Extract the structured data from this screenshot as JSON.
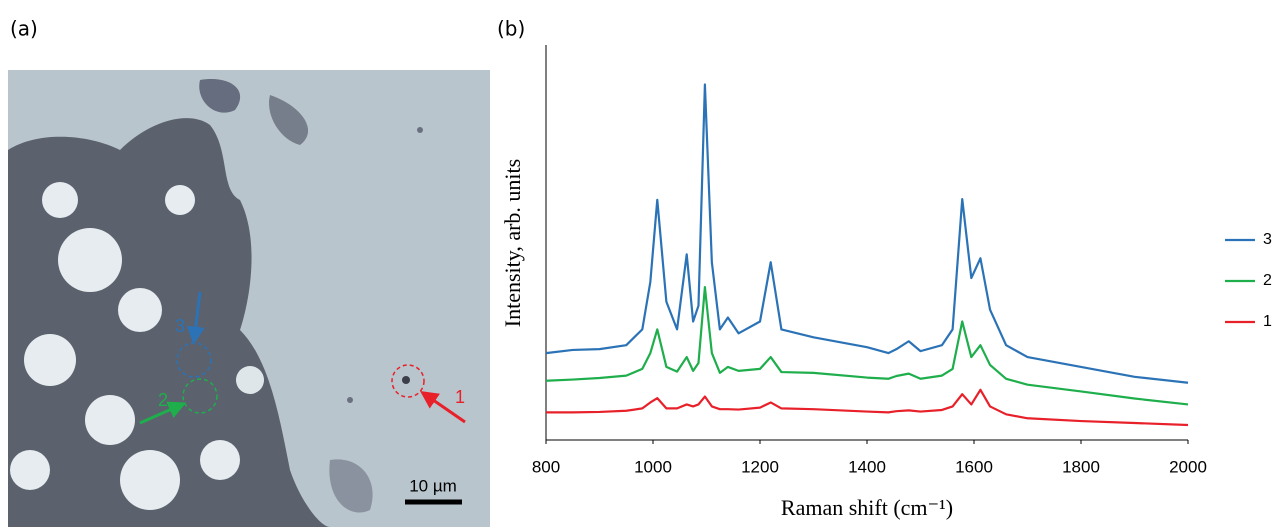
{
  "panel_labels": [
    "(a)",
    "(b)"
  ],
  "micrograph": {
    "markers": [
      "1",
      "2",
      "3"
    ],
    "scale_bar": "10 µm"
  },
  "chart_data": {
    "type": "line",
    "xlabel": "Raman shift (cm⁻¹)",
    "ylabel": "Intensity, arb. units",
    "x": [
      800,
      850,
      900,
      950,
      980,
      995,
      1008,
      1025,
      1045,
      1063,
      1075,
      1085,
      1097,
      1110,
      1125,
      1140,
      1160,
      1200,
      1220,
      1240,
      1300,
      1400,
      1440,
      1455,
      1478,
      1500,
      1540,
      1560,
      1578,
      1595,
      1612,
      1630,
      1660,
      1700,
      1800,
      1900,
      2000
    ],
    "xlim": [
      800,
      2000
    ],
    "xticks": [
      800,
      1000,
      1200,
      1400,
      1600,
      1800,
      2000
    ],
    "ylim": [
      0,
      100
    ],
    "legend": "right",
    "series": [
      {
        "name": "3",
        "color": "#2b73b6",
        "values": [
          22,
          22.8,
          23,
          24,
          28,
          40,
          60.8,
          35,
          28,
          47,
          30,
          34,
          90,
          45,
          28,
          31,
          27,
          30,
          45,
          28,
          26,
          23.5,
          22,
          23,
          25,
          22.5,
          24,
          28,
          61,
          41,
          46,
          33,
          24,
          21,
          18.5,
          16,
          14.5
        ]
      },
      {
        "name": "2",
        "color": "#1fae4c",
        "values": [
          15,
          15.3,
          15.7,
          16.3,
          18,
          22,
          28,
          18.5,
          17.3,
          21,
          17.5,
          19.5,
          38.7,
          22,
          17,
          18.5,
          17.5,
          18,
          21,
          17.2,
          17,
          15.8,
          15.5,
          16.2,
          16.8,
          15.5,
          16.3,
          18,
          30,
          21,
          24,
          19,
          15.5,
          14,
          12.3,
          10.5,
          9
        ]
      },
      {
        "name": "1",
        "color": "#e8202a",
        "values": [
          7,
          7,
          7.1,
          7.4,
          8,
          9.5,
          10.6,
          8,
          8,
          9,
          8.5,
          9,
          11,
          8.5,
          7.8,
          7.8,
          7.7,
          8.2,
          9.5,
          8,
          7.8,
          7.2,
          7,
          7.3,
          7.5,
          7.2,
          7.6,
          8.5,
          11.6,
          9,
          12.7,
          8.5,
          6.5,
          5.5,
          4.8,
          4.3,
          3.8
        ]
      }
    ]
  }
}
